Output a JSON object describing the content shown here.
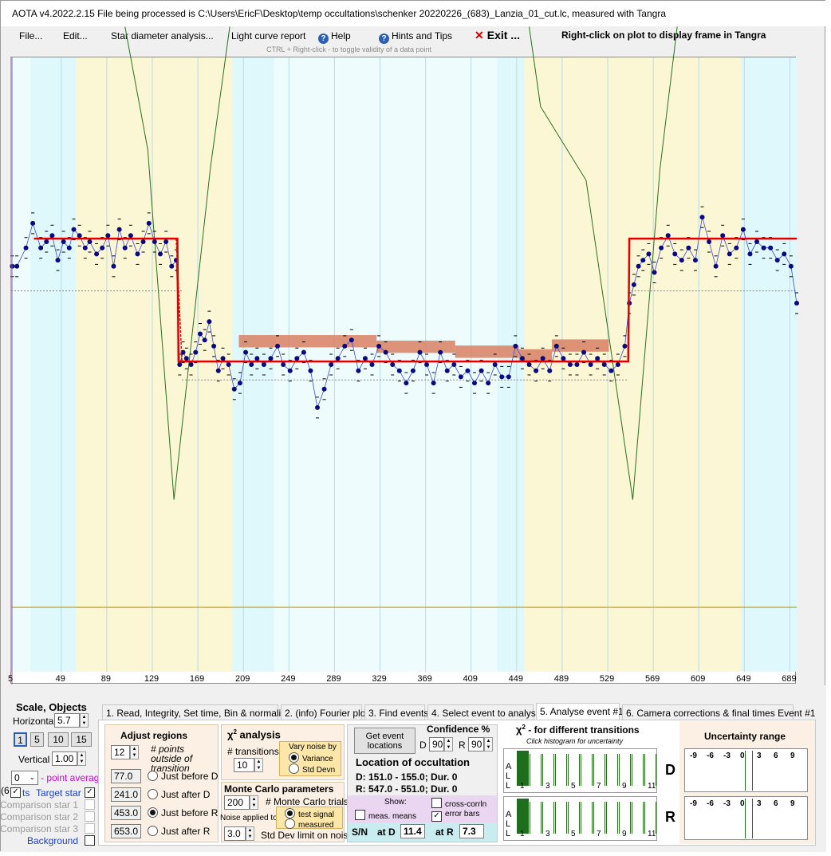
{
  "window": {
    "title": "AOTA v4.2022.2.15    File being processed is C:\\Users\\EricF\\Desktop\\temp occultations\\schenker 20220226_(683)_Lanzia_01_cut.lc, measured with Tangra"
  },
  "menu": {
    "file": "File...",
    "edit": "Edit...",
    "star_diameter": "Star diameter analysis...",
    "light_curve_report": "Light curve report",
    "help": "Help",
    "hints": "Hints and Tips",
    "exit": "Exit ...",
    "right_click_hint": "Right-click on plot to display frame in Tangra",
    "ctrl_hint": "CTRL + Right-click  -  to toggle validity of a data point"
  },
  "icons": {
    "help": "help-icon",
    "hints": "help-icon",
    "exit": "close-icon"
  },
  "colors": {
    "band_cyan": "#dff8fb",
    "band_yellow": "#fbf6d3",
    "band_pale": "#eefcfd",
    "fit_line": "#e00000",
    "data_points": "#0a0a80",
    "chi_curve": "#2a6f1e",
    "residual_band": "#d9876a",
    "baseline": "#c8a000",
    "histogram_bar": "#1e6e1e"
  },
  "plot": {
    "x_ticks": [
      "5",
      "49",
      "89",
      "129",
      "169",
      "209",
      "249",
      "289",
      "329",
      "369",
      "409",
      "449",
      "489",
      "529",
      "569",
      "609",
      "649",
      "689"
    ]
  },
  "chart_data": {
    "type": "line",
    "xlim": [
      5,
      695
    ],
    "ylim": [
      0,
      1
    ],
    "regions": {
      "D": [
        151.0,
        155.0
      ],
      "R": [
        547.0,
        551.0
      ]
    },
    "fit_model": {
      "name": "",
      "levels": {
        "baseline": 0.705,
        "event": 0.505
      }
    },
    "data_series": {
      "name": "",
      "x": [
        6,
        10,
        18,
        24,
        31,
        36,
        41,
        46,
        51,
        56,
        60,
        65,
        70,
        74,
        80,
        85,
        90,
        95,
        100,
        105,
        110,
        116,
        121,
        126,
        131,
        136,
        141,
        146,
        150,
        153,
        156,
        159,
        163,
        167,
        171,
        175,
        179,
        183,
        187,
        191,
        196,
        201,
        206,
        211,
        216,
        221,
        227,
        233,
        239,
        244,
        250,
        256,
        262,
        268,
        274,
        280,
        286,
        292,
        298,
        304,
        310,
        316,
        322,
        328,
        334,
        340,
        346,
        352,
        358,
        364,
        370,
        376,
        382,
        388,
        394,
        400,
        406,
        412,
        418,
        424,
        430,
        436,
        442,
        448,
        454,
        460,
        466,
        472,
        478,
        484,
        490,
        496,
        502,
        508,
        514,
        520,
        526,
        532,
        538,
        544,
        548,
        552,
        556,
        560,
        565,
        570,
        576,
        582,
        588,
        594,
        600,
        606,
        612,
        618,
        624,
        630,
        636,
        642,
        648,
        654,
        660,
        666,
        672,
        678,
        684,
        690,
        695
      ],
      "y": [
        0.66,
        0.66,
        0.69,
        0.73,
        0.69,
        0.7,
        0.71,
        0.67,
        0.7,
        0.69,
        0.72,
        0.71,
        0.69,
        0.7,
        0.68,
        0.69,
        0.71,
        0.66,
        0.72,
        0.69,
        0.71,
        0.68,
        0.7,
        0.73,
        0.7,
        0.68,
        0.7,
        0.66,
        0.67,
        0.5,
        0.52,
        0.51,
        0.5,
        0.52,
        0.55,
        0.54,
        0.57,
        0.53,
        0.49,
        0.51,
        0.5,
        0.46,
        0.47,
        0.52,
        0.5,
        0.51,
        0.5,
        0.51,
        0.53,
        0.5,
        0.49,
        0.51,
        0.52,
        0.49,
        0.43,
        0.46,
        0.5,
        0.51,
        0.53,
        0.54,
        0.49,
        0.51,
        0.5,
        0.53,
        0.52,
        0.5,
        0.49,
        0.47,
        0.49,
        0.52,
        0.5,
        0.47,
        0.52,
        0.49,
        0.5,
        0.48,
        0.49,
        0.47,
        0.49,
        0.47,
        0.5,
        0.48,
        0.48,
        0.53,
        0.51,
        0.5,
        0.49,
        0.51,
        0.49,
        0.53,
        0.51,
        0.5,
        0.5,
        0.52,
        0.5,
        0.51,
        0.5,
        0.49,
        0.5,
        0.53,
        0.6,
        0.63,
        0.66,
        0.67,
        0.68,
        0.65,
        0.69,
        0.71,
        0.68,
        0.67,
        0.69,
        0.67,
        0.74,
        0.7,
        0.66,
        0.71,
        0.68,
        0.69,
        0.72,
        0.68,
        0.7,
        0.69,
        0.69,
        0.67,
        0.68,
        0.66,
        0.6
      ]
    },
    "chi2_curve": {
      "name": "",
      "x": [
        148,
        551
      ],
      "min_y": 0.28
    }
  },
  "scale": {
    "title": "Scale,  Objects",
    "horizontal_label": "Horizontal",
    "horizontal_value": "5.7",
    "presets": [
      "1",
      "5",
      "10",
      "15"
    ],
    "vertical_label": "Vertical",
    "vertical_value": "1.00",
    "point_average_value": "0",
    "point_average_label": "- point average",
    "series": [
      {
        "label": "Target star",
        "prefix": "ts",
        "checked": true
      },
      {
        "label": "Comparison star 1",
        "prefix": "",
        "checked": false
      },
      {
        "label": "Comparison star 2",
        "prefix": "",
        "checked": false
      },
      {
        "label": "Comparison star 3",
        "prefix": "",
        "checked": false
      },
      {
        "label": "Background",
        "prefix": "",
        "checked": false
      }
    ],
    "left_clip": "(6"
  },
  "tabs": [
    "1.  Read, Integrity, Set time, Bin & normalise",
    "2. (info)  Fourier plot",
    "3. Find events",
    "4. Select event to analyse",
    "5. Analyse event #1",
    "6. Camera corrections & final times Event #1"
  ],
  "adjust": {
    "title": "Adjust regions",
    "points_value": "12",
    "points_label": "# points outside of transition",
    "rows": [
      {
        "value": "77.0",
        "label": "Just before D",
        "selected": false
      },
      {
        "value": "241.0",
        "label": "Just after D",
        "selected": false
      },
      {
        "value": "453.0",
        "label": "Just before R",
        "selected": true
      },
      {
        "value": "653.0",
        "label": "Just after R",
        "selected": false
      }
    ]
  },
  "chi2": {
    "title": "χ",
    "title_suffix": " analysis",
    "sup": "2",
    "transitions_label": "# transitions",
    "transitions_value": "10",
    "vary_label": "Vary noise by",
    "variance": "Variance",
    "std_devn": "Std Devn"
  },
  "monte": {
    "title": "Monte Carlo parameters",
    "trials_value": "200",
    "trials_label": "# Monte Carlo trials",
    "noise_label": "Noise applied to",
    "test_signal": "test signal",
    "measured": "measured",
    "sd_value": "3.0",
    "sd_label": "Std Dev limit on noise"
  },
  "events": {
    "get_button": "Get event locations",
    "conf_title": "Confidence %",
    "d_label": "D",
    "d_value": "90",
    "r_label": "R",
    "r_value": "90",
    "location_title": "Location of occultation",
    "d_line": "D: 151.0 - 155.0; Dur. 0",
    "r_line": "R: 547.0 - 551.0; Dur. 0",
    "show_label": "Show:",
    "cross_corrln": "cross-corrln",
    "meas_means": "meas. means",
    "error_bars": "error bars",
    "sn_label": "S/N",
    "at_d": "at D",
    "sn_d": "11.4",
    "at_r": "at R",
    "sn_r": "7.3"
  },
  "histo": {
    "title": "χ",
    "sup": "2",
    "title_suffix": " - for different transitions",
    "subtitle": "Click histogram for uncertainty",
    "side": [
      "A",
      "L",
      "L"
    ],
    "ticks": [
      "1",
      "3",
      "5",
      "7",
      "9",
      "11"
    ],
    "d_label": "D",
    "r_label": "R"
  },
  "uncert": {
    "title": "Uncertainty range",
    "ticks": [
      "-9",
      "-6",
      "-3",
      "0",
      "3",
      "6",
      "9"
    ]
  }
}
